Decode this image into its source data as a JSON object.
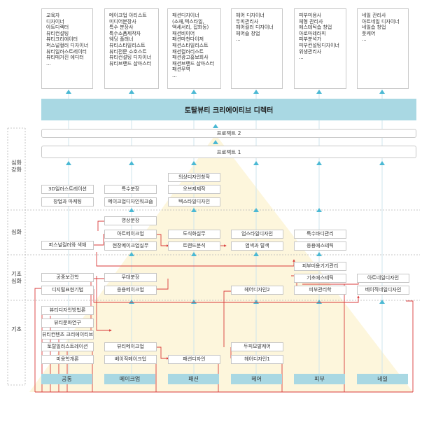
{
  "careers": [
    {
      "id": "c1",
      "items": [
        "교육자",
        "디자이너",
        "아트디렉터",
        "뷰티컨설팅",
        "뷰티크리에이터",
        "퍼스널컬러 디자이너",
        "뷰티일러스트레이터",
        "뷰티매거진 에디터",
        "..."
      ]
    },
    {
      "id": "c2",
      "items": [
        "메이크업 아티스트",
        "미디어분장사",
        "특수 분장사",
        "특수소품제작자",
        "웨딩 플래너",
        "뷰티스타일리스트",
        "뷰티전문 쇼호스트",
        "뷰티컨설팅 디자이너",
        "뷰티브랜드 샵마스터"
      ]
    },
    {
      "id": "c3",
      "items": [
        "패션디자이너",
        "(소재,텍스타일,",
        "액세서리, 잡화등)",
        "패션비이어",
        "패션마천다이저",
        "패션스타일리스트",
        "패션컬러리스트",
        "패션광고홍보회사",
        "패션브랜드 샵마스터",
        "패션무역",
        "..."
      ]
    },
    {
      "id": "c4",
      "items": [
        "헤어 디자이너",
        "두피관리사",
        "헤어컬러 디자이너",
        "헤어숍 창업",
        "..."
      ]
    },
    {
      "id": "c5",
      "items": [
        "피부미용사",
        "체형 관리사",
        "에스테틱숍 창업",
        "아로마테라피",
        "피부분석가",
        "피부컨설팅디자이너",
        "위생관리사",
        "..."
      ]
    },
    {
      "id": "c6",
      "items": [
        "네일 관리사",
        "아트네일 디자이너",
        "네일숍 창업",
        "풋케어",
        "..."
      ]
    }
  ],
  "banner": "토탈뷰티 크리에이티브 디렉터",
  "projects": [
    "프로젝트 2",
    "프로젝트 1"
  ],
  "levels": [
    {
      "id": "lv1",
      "label": "심화\n강화"
    },
    {
      "id": "lv2",
      "label": "심화"
    },
    {
      "id": "lv3",
      "label": "기초\n심화"
    },
    {
      "id": "lv4",
      "label": "기초"
    }
  ],
  "courses": {
    "k1": "3D일러스트레이션",
    "k2": "창업과 마케팅",
    "k3": "특수분장",
    "k4": "메이크업디자인워크숍",
    "k5": "의상디자인창작",
    "k6": "오브제제작",
    "k7": "텍스타일디자인",
    "k8": "영상분장",
    "k9": "아트메이크업",
    "k10": "퍼스널컬러와 색채",
    "k11": "현장메이크업실무",
    "k12": "도식화실무",
    "k13": "트렌드분석",
    "k14": "업스타일디자인",
    "k15": "염색과 탈색",
    "k16": "특수바디관리",
    "k17": "응용에스테틱",
    "k18": "공중보건학",
    "k19": "디지털표현기법",
    "k20": "무대분장",
    "k21": "응용메이크업",
    "k22": "헤어디자인2",
    "k23": "피부미용기기관리",
    "k24": "기초에스테틱",
    "k25": "피부관리학",
    "k26": "아트네일디자인",
    "k27": "베이직네일디자인",
    "k28": "뷰티디자인방법론",
    "k29": "뷰티문화연구",
    "k30": "뷰티컨텐츠 크리에이티브",
    "k31": "토탈일러스트레이션",
    "k32": "미용학개론",
    "k33": "뷰티메이크업",
    "k34": "베이직메이크업",
    "k35": "패션디자인",
    "k36": "두피모발케어",
    "k37": "헤어디자인1"
  },
  "bases": [
    "공통",
    "메이크업",
    "패션",
    "헤어",
    "피부",
    "네일"
  ],
  "colors": {
    "banner": "#a9d8e3",
    "triangle": "#fdf6dc",
    "arrow": "#4bb9d4",
    "link": "#d93a3a",
    "stem": "#d4e8ee"
  }
}
